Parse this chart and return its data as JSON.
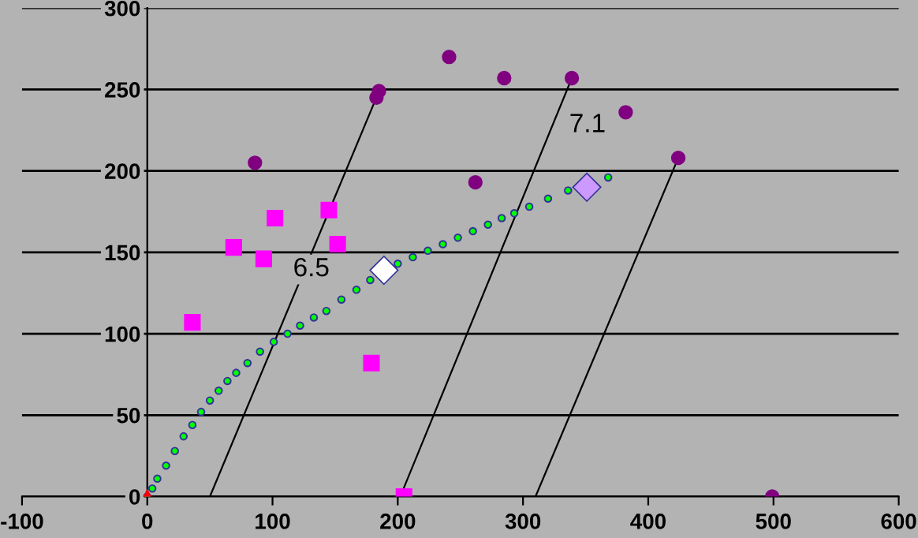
{
  "chart_data": {
    "type": "scatter",
    "xlim": [
      -100,
      600
    ],
    "xticks": [
      -100,
      0,
      100,
      200,
      300,
      400,
      500,
      600
    ],
    "ylim": [
      0,
      300
    ],
    "yticks": [
      0,
      50,
      100,
      150,
      200,
      250,
      300
    ],
    "grid": "y",
    "legend": false,
    "annotations": [
      "6.5",
      "7.1"
    ],
    "series": [
      {
        "type": "line",
        "color": "#000000",
        "marker": "none",
        "line_style": "solid",
        "x": [
          50,
          184
        ],
        "values": [
          0,
          247
        ]
      },
      {
        "type": "line",
        "color": "#000000",
        "marker": "none",
        "line_style": "solid",
        "x": [
          202,
          339
        ],
        "values": [
          0,
          257
        ]
      },
      {
        "type": "line",
        "color": "#000000",
        "marker": "none",
        "line_style": "solid",
        "x": [
          310,
          424
        ],
        "values": [
          0,
          208
        ]
      },
      {
        "color": "#333399",
        "marker": "circle",
        "x": [
          0,
          4,
          8,
          15,
          22,
          29,
          36,
          43,
          50,
          57,
          64,
          71,
          80,
          90,
          101,
          112,
          122,
          133,
          143,
          155,
          167,
          178,
          200,
          212,
          224,
          236,
          248,
          260,
          272,
          283,
          293,
          305,
          320,
          336,
          368
        ],
        "values": [
          0,
          5,
          11,
          19,
          28,
          37,
          44,
          52,
          59,
          65,
          71,
          76,
          82,
          89,
          95,
          100,
          105,
          110,
          114,
          121,
          127,
          133,
          143,
          147,
          151,
          155,
          159,
          163,
          167,
          171,
          174,
          178,
          183,
          188,
          196
        ]
      },
      {
        "color": "#00ff00",
        "marker": "circle",
        "x": [
          0,
          4,
          8,
          15,
          22,
          29,
          36,
          43,
          50,
          57,
          64,
          71,
          80,
          90,
          101,
          112,
          122,
          133,
          143,
          155,
          167,
          178,
          200,
          212,
          224,
          236,
          248,
          260,
          272,
          283,
          293,
          305,
          320,
          336,
          368
        ],
        "values": [
          0,
          5,
          11,
          19,
          28,
          37,
          44,
          52,
          59,
          65,
          71,
          76,
          82,
          89,
          95,
          100,
          105,
          110,
          114,
          121,
          127,
          133,
          143,
          147,
          151,
          155,
          159,
          163,
          167,
          171,
          174,
          178,
          183,
          188,
          196
        ]
      },
      {
        "color": "#800080",
        "marker": "circle",
        "x": [
          86,
          183,
          185,
          241,
          285,
          339,
          382,
          424,
          262,
          499
        ],
        "values": [
          205,
          245,
          249,
          270,
          257,
          257,
          236,
          208,
          193,
          0
        ]
      },
      {
        "color": "#ff00ff",
        "marker": "square",
        "x": [
          36,
          69,
          93,
          102,
          145,
          152,
          179,
          205
        ],
        "values": [
          107,
          153,
          146,
          171,
          176,
          155,
          82,
          0
        ]
      },
      {
        "color": "#ffffff",
        "marker": "diamond",
        "x": [
          189
        ],
        "values": [
          139
        ]
      },
      {
        "color": "#cc99ff",
        "marker": "diamond",
        "x": [
          351
        ],
        "values": [
          190
        ]
      },
      {
        "color": "#ff0000",
        "marker": "triangle",
        "x": [
          0
        ],
        "values": [
          0
        ]
      }
    ]
  }
}
